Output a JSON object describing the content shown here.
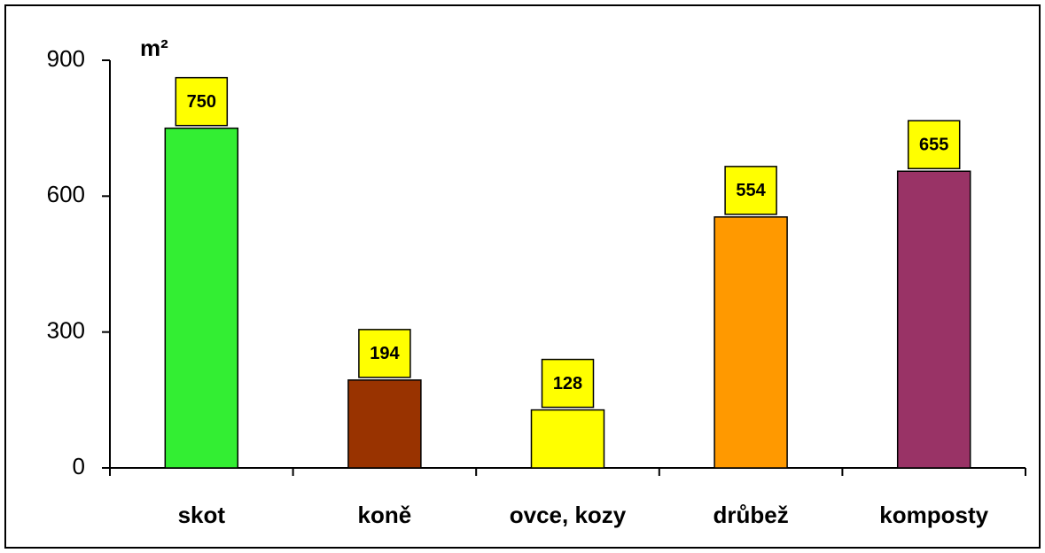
{
  "chart_data": {
    "type": "bar",
    "y_label": "m²",
    "categories": [
      "skot",
      "koně",
      "ovce, kozy",
      "drůbež",
      "komposty"
    ],
    "values": [
      750,
      194,
      128,
      554,
      655
    ],
    "colors": [
      "#33ee33",
      "#993300",
      "#ffff00",
      "#ff9900",
      "#993366"
    ],
    "label_box_color": "#ffff00",
    "ylim": [
      0,
      900
    ],
    "yticks": [
      0,
      300,
      600,
      900
    ],
    "grid": false
  }
}
